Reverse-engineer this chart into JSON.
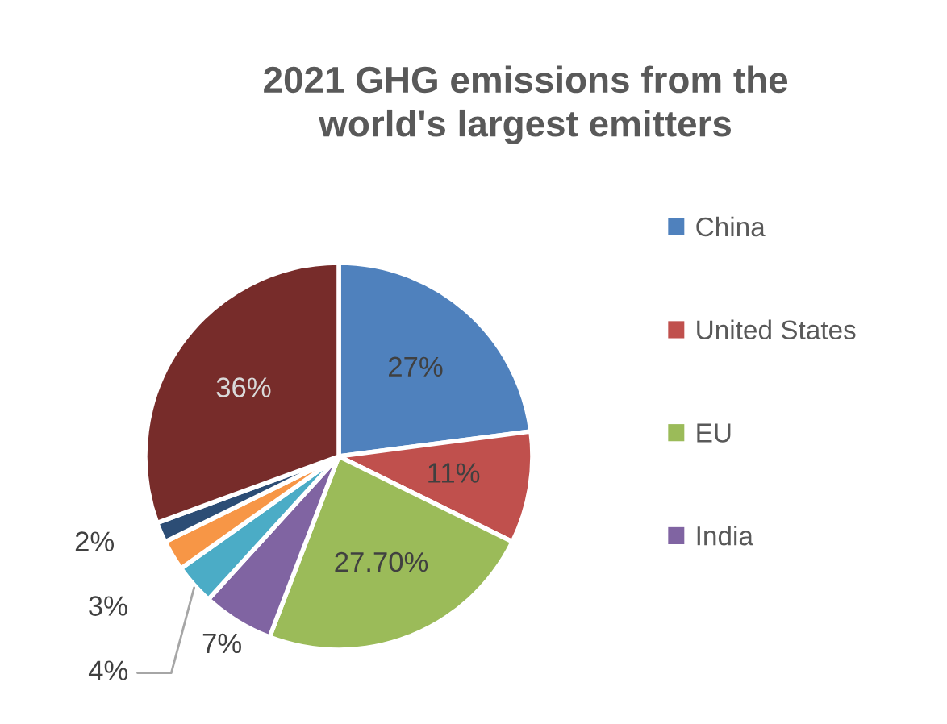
{
  "chart_data": {
    "type": "pie",
    "title": "2021 GHG emissions from the world's largest emitters",
    "categories": [
      "China",
      "United States",
      "EU",
      "India",
      null,
      null,
      null,
      null
    ],
    "values": [
      27,
      11,
      27.7,
      7,
      4,
      3,
      2,
      36
    ],
    "value_labels": [
      "27%",
      "11%",
      "27.70%",
      "7%",
      "4%",
      "3%",
      "2%",
      "36%"
    ],
    "colors": [
      "#4f81bd",
      "#c0504d",
      "#9bbb59",
      "#8064a2",
      "#4bacc6",
      "#f79646",
      "#2c4d75",
      "#772c2a"
    ],
    "legend": "right"
  }
}
